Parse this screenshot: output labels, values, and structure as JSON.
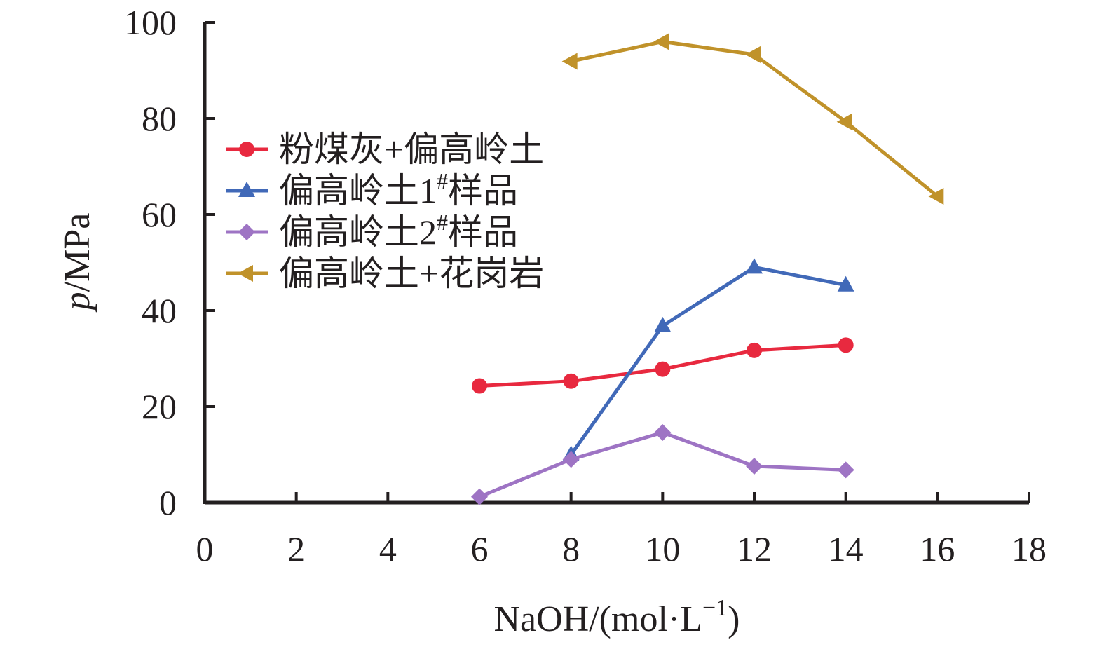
{
  "chart_data": {
    "type": "line",
    "title": "",
    "xlabel": {
      "main": "NaOH/(mol·L",
      "sup": "−1",
      "close": ")"
    },
    "ylabel": {
      "italic": "p",
      "rest": "/MPa"
    },
    "xlim": [
      0,
      18
    ],
    "ylim": [
      0,
      100
    ],
    "xticks": [
      "0",
      "2",
      "4",
      "6",
      "8",
      "10",
      "12",
      "14",
      "16",
      "18"
    ],
    "yticks": [
      "0",
      "20",
      "40",
      "60",
      "80",
      "100"
    ],
    "grid": false,
    "legend_position": "left",
    "series": [
      {
        "name": "粉煤灰+偏高岭土",
        "color": "#e8293f",
        "marker": "circle",
        "x": [
          6,
          8,
          10,
          12,
          14
        ],
        "y": [
          24.3,
          25.3,
          27.8,
          31.7,
          32.8
        ]
      },
      {
        "name": "偏高岭土1#样品",
        "name_parts": {
          "main": "偏高岭土1",
          "sup": "#",
          "tail": "样品"
        },
        "color": "#4169b8",
        "marker": "triangle-up",
        "x": [
          8,
          10,
          12,
          14
        ],
        "y": [
          10.0,
          36.8,
          49.0,
          45.3
        ]
      },
      {
        "name": "偏高岭土2#样品",
        "name_parts": {
          "main": "偏高岭土2",
          "sup": "#",
          "tail": "样品"
        },
        "color": "#9e74c4",
        "marker": "diamond",
        "x": [
          6,
          8,
          10,
          12,
          14
        ],
        "y": [
          1.2,
          9.0,
          14.6,
          7.6,
          6.8
        ]
      },
      {
        "name": "偏高岭土+花岗岩",
        "color": "#c0922a",
        "marker": "triangle-left",
        "x": [
          8,
          10,
          12,
          14,
          16
        ],
        "y": [
          91.9,
          96.0,
          93.3,
          79.3,
          63.8
        ]
      }
    ]
  }
}
